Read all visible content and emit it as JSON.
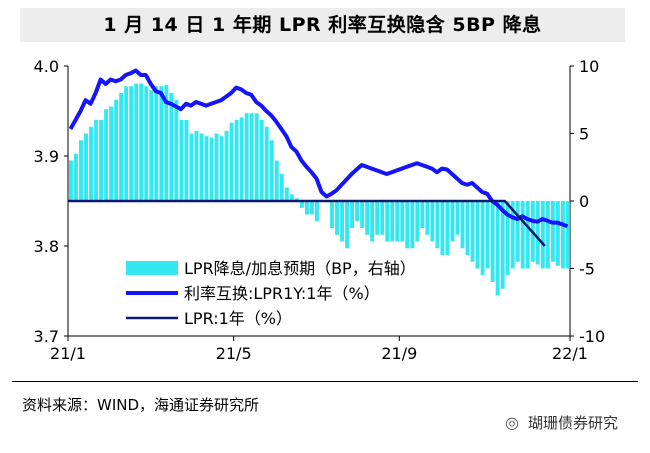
{
  "title": "1 月 14 日 1 年期 LPR 利率互换隐含 5BP 降息",
  "source": "资料来源：WIND，海通证券研究所",
  "watermark": "瑚珊债券研究",
  "colors": {
    "bar": "#33e8f0",
    "swap": "#1414ff",
    "lpr": "#0d1a6e",
    "axis": "#000000"
  },
  "chart_data": {
    "type": "bar+line",
    "x_ticks": [
      "21/1",
      "21/5",
      "21/9",
      "22/1"
    ],
    "x_range": [
      0,
      100
    ],
    "x_tick_positions": [
      0,
      33,
      66,
      100
    ],
    "y_left": {
      "ticks": [
        "3.7",
        "3.8",
        "3.9",
        "4.0"
      ],
      "range": [
        3.7,
        4.0
      ]
    },
    "y_right": {
      "ticks": [
        "-10",
        "-5",
        "0",
        "5",
        "10"
      ],
      "range": [
        -10,
        10
      ]
    },
    "legend": {
      "bar": "LPR降息/加息预期（BP，右轴）",
      "swap": "利率互换:LPR1Y:1年（%）",
      "lpr": "LPR:1年（%）"
    },
    "series": [
      {
        "name": "LPR降息/加息预期（BP，右轴）",
        "axis": "right",
        "type": "bar",
        "x": [
          0,
          1,
          2,
          3,
          4,
          5,
          6,
          7,
          8,
          9,
          10,
          11,
          12,
          13,
          14,
          15,
          16,
          17,
          18,
          19,
          20,
          21,
          22,
          23,
          24,
          25,
          26,
          27,
          28,
          29,
          30,
          31,
          32,
          33,
          34,
          35,
          36,
          37,
          38,
          39,
          40,
          41,
          42,
          43,
          44,
          45,
          46,
          47,
          48,
          49,
          50,
          51,
          52,
          53,
          54,
          55,
          56,
          57,
          58,
          59,
          60,
          61,
          62,
          63,
          64,
          65,
          66,
          67,
          68,
          69,
          70,
          71,
          72,
          73,
          74,
          75,
          76,
          77,
          78,
          79,
          80,
          81,
          82,
          83,
          84,
          85,
          86,
          87,
          88,
          89,
          90,
          91,
          92,
          93,
          94,
          95,
          96,
          97,
          98,
          99
        ],
        "values": [
          3,
          3.5,
          4.5,
          5,
          5.5,
          6,
          6,
          6.8,
          7,
          7.5,
          8,
          8.5,
          8.5,
          8.7,
          8.7,
          8.5,
          8.2,
          8.5,
          8.5,
          8.6,
          8,
          7.5,
          6,
          6,
          5,
          5.2,
          5,
          4.8,
          4.7,
          5,
          4.8,
          5.2,
          5.8,
          6,
          6.2,
          6.5,
          6.5,
          6.5,
          6,
          5.5,
          4.5,
          3,
          2,
          1,
          0.5,
          0.2,
          -0.5,
          -1,
          -1,
          -1.5,
          0,
          0,
          -2,
          -2.5,
          -3,
          -3.5,
          -2,
          -1.5,
          -2,
          -2.5,
          -3,
          -2.5,
          -2.5,
          -3,
          -3,
          -3,
          -3,
          -3.5,
          -3.5,
          -3,
          -2,
          -2.5,
          -3,
          -3.5,
          -4,
          -4,
          -3,
          -2.5,
          -3.5,
          -4,
          -4.5,
          -5,
          -5.5,
          -5,
          -6,
          -7,
          -6.5,
          -5.5,
          -5,
          -4.5,
          -5,
          -5,
          -4.5,
          -4.7,
          -5,
          -5,
          -4.5,
          -4.8,
          -5,
          -5
        ]
      },
      {
        "name": "利率互换:LPR1Y:1年（%）",
        "axis": "left",
        "type": "line",
        "x": [
          0,
          1,
          2,
          3,
          4,
          5,
          6,
          7,
          8,
          9,
          10,
          11,
          12,
          13,
          14,
          15,
          16,
          17,
          18,
          19,
          20,
          21,
          22,
          23,
          24,
          25,
          26,
          27,
          28,
          29,
          30,
          31,
          32,
          33,
          34,
          35,
          36,
          37,
          38,
          39,
          40,
          41,
          42,
          43,
          44,
          45,
          46,
          47,
          48,
          49,
          50,
          51,
          52,
          53,
          54,
          55,
          56,
          57,
          58,
          59,
          60,
          61,
          62,
          63,
          64,
          65,
          66,
          67,
          68,
          69,
          70,
          71,
          72,
          73,
          74,
          75,
          76,
          77,
          78,
          79,
          80,
          81,
          82,
          83,
          84,
          85,
          86,
          87,
          88,
          89,
          90,
          91,
          92,
          93,
          94,
          95,
          96,
          97,
          98,
          99
        ],
        "values": [
          3.93,
          3.94,
          3.95,
          3.962,
          3.958,
          3.97,
          3.985,
          3.98,
          3.985,
          3.983,
          3.985,
          3.99,
          3.992,
          3.995,
          3.99,
          3.99,
          3.98,
          3.972,
          3.97,
          3.96,
          3.958,
          3.955,
          3.952,
          3.958,
          3.956,
          3.96,
          3.958,
          3.956,
          3.958,
          3.96,
          3.962,
          3.966,
          3.97,
          3.976,
          3.974,
          3.97,
          3.968,
          3.96,
          3.956,
          3.95,
          3.945,
          3.938,
          3.93,
          3.922,
          3.91,
          3.905,
          3.895,
          3.888,
          3.882,
          3.875,
          3.86,
          3.855,
          3.858,
          3.862,
          3.868,
          3.874,
          3.88,
          3.885,
          3.89,
          3.888,
          3.886,
          3.884,
          3.882,
          3.88,
          3.882,
          3.884,
          3.886,
          3.888,
          3.89,
          3.892,
          3.89,
          3.888,
          3.886,
          3.882,
          3.886,
          3.885,
          3.88,
          3.875,
          3.87,
          3.868,
          3.87,
          3.865,
          3.86,
          3.858,
          3.85,
          3.846,
          3.84,
          3.835,
          3.832,
          3.83,
          3.833,
          3.83,
          3.828,
          3.827,
          3.83,
          3.828,
          3.826,
          3.826,
          3.824,
          3.822
        ]
      },
      {
        "name": "LPR:1年（%）",
        "axis": "left",
        "type": "line",
        "x": [
          0,
          87,
          95
        ],
        "values": [
          3.85,
          3.85,
          3.8
        ]
      }
    ]
  }
}
